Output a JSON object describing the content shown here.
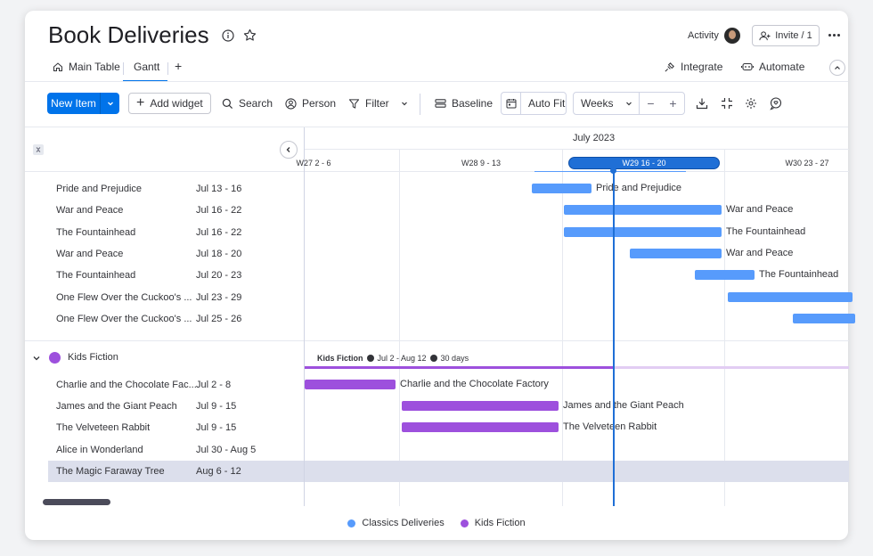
{
  "header": {
    "title": "Book Deliveries",
    "activity_label": "Activity",
    "invite_label": "Invite / 1"
  },
  "tabs": [
    {
      "label": "Main Table"
    },
    {
      "label": "Gantt"
    }
  ],
  "integrations": {
    "integrate_label": "Integrate",
    "automate_label": "Automate"
  },
  "toolbar": {
    "new_item_label": "New Item",
    "add_widget_label": "Add widget",
    "search_label": "Search",
    "person_label": "Person",
    "filter_label": "Filter",
    "baseline_label": "Baseline",
    "auto_fit_label": "Auto Fit",
    "weeks_label": "Weeks"
  },
  "gantt": {
    "month_label": "July 2023",
    "weeks": [
      "W27 2 - 6",
      "W28 9 - 13",
      "W29 16 - 20",
      "W30 23 - 27"
    ],
    "current_week_index": 2,
    "group_summary": {
      "name": "Kids Fiction",
      "range": "Jul 2 - Aug 12",
      "days": "30 days"
    }
  },
  "groups": [
    {
      "name": "Classics Deliveries",
      "color": "#579bfc",
      "items": [
        {
          "name": "Pride and Prejudice",
          "dates": "Jul 13 - 16"
        },
        {
          "name": "War and Peace",
          "dates": "Jul 16 - 22"
        },
        {
          "name": "The Fountainhead",
          "dates": "Jul 16 - 22"
        },
        {
          "name": "War and Peace",
          "dates": "Jul 18 - 20"
        },
        {
          "name": "The Fountainhead",
          "dates": "Jul 20 - 23"
        },
        {
          "name": "One Flew Over the Cuckoo's ...",
          "dates": "Jul 23 - 29"
        },
        {
          "name": "One Flew Over the Cuckoo's ...",
          "dates": "Jul 25 - 26"
        }
      ]
    },
    {
      "name": "Kids Fiction",
      "color": "#9d50dd",
      "items": [
        {
          "name": "Charlie and the Chocolate Fac...",
          "dates": "Jul 2 - 8",
          "bar_label": "Charlie and the Chocolate Factory"
        },
        {
          "name": "James and the Giant Peach",
          "dates": "Jul 9 - 15",
          "bar_label": "James and the Giant Peach"
        },
        {
          "name": "The Velveteen Rabbit",
          "dates": "Jul 9 - 15",
          "bar_label": "The Velveteen Rabbit"
        },
        {
          "name": "Alice in Wonderland",
          "dates": "Jul 30 - Aug 5"
        },
        {
          "name": "The Magic Faraway Tree",
          "dates": "Aug 6 - 12"
        }
      ]
    }
  ],
  "legend": [
    {
      "label": "Classics Deliveries",
      "color": "#579bfc"
    },
    {
      "label": "Kids Fiction",
      "color": "#9d50dd"
    }
  ]
}
